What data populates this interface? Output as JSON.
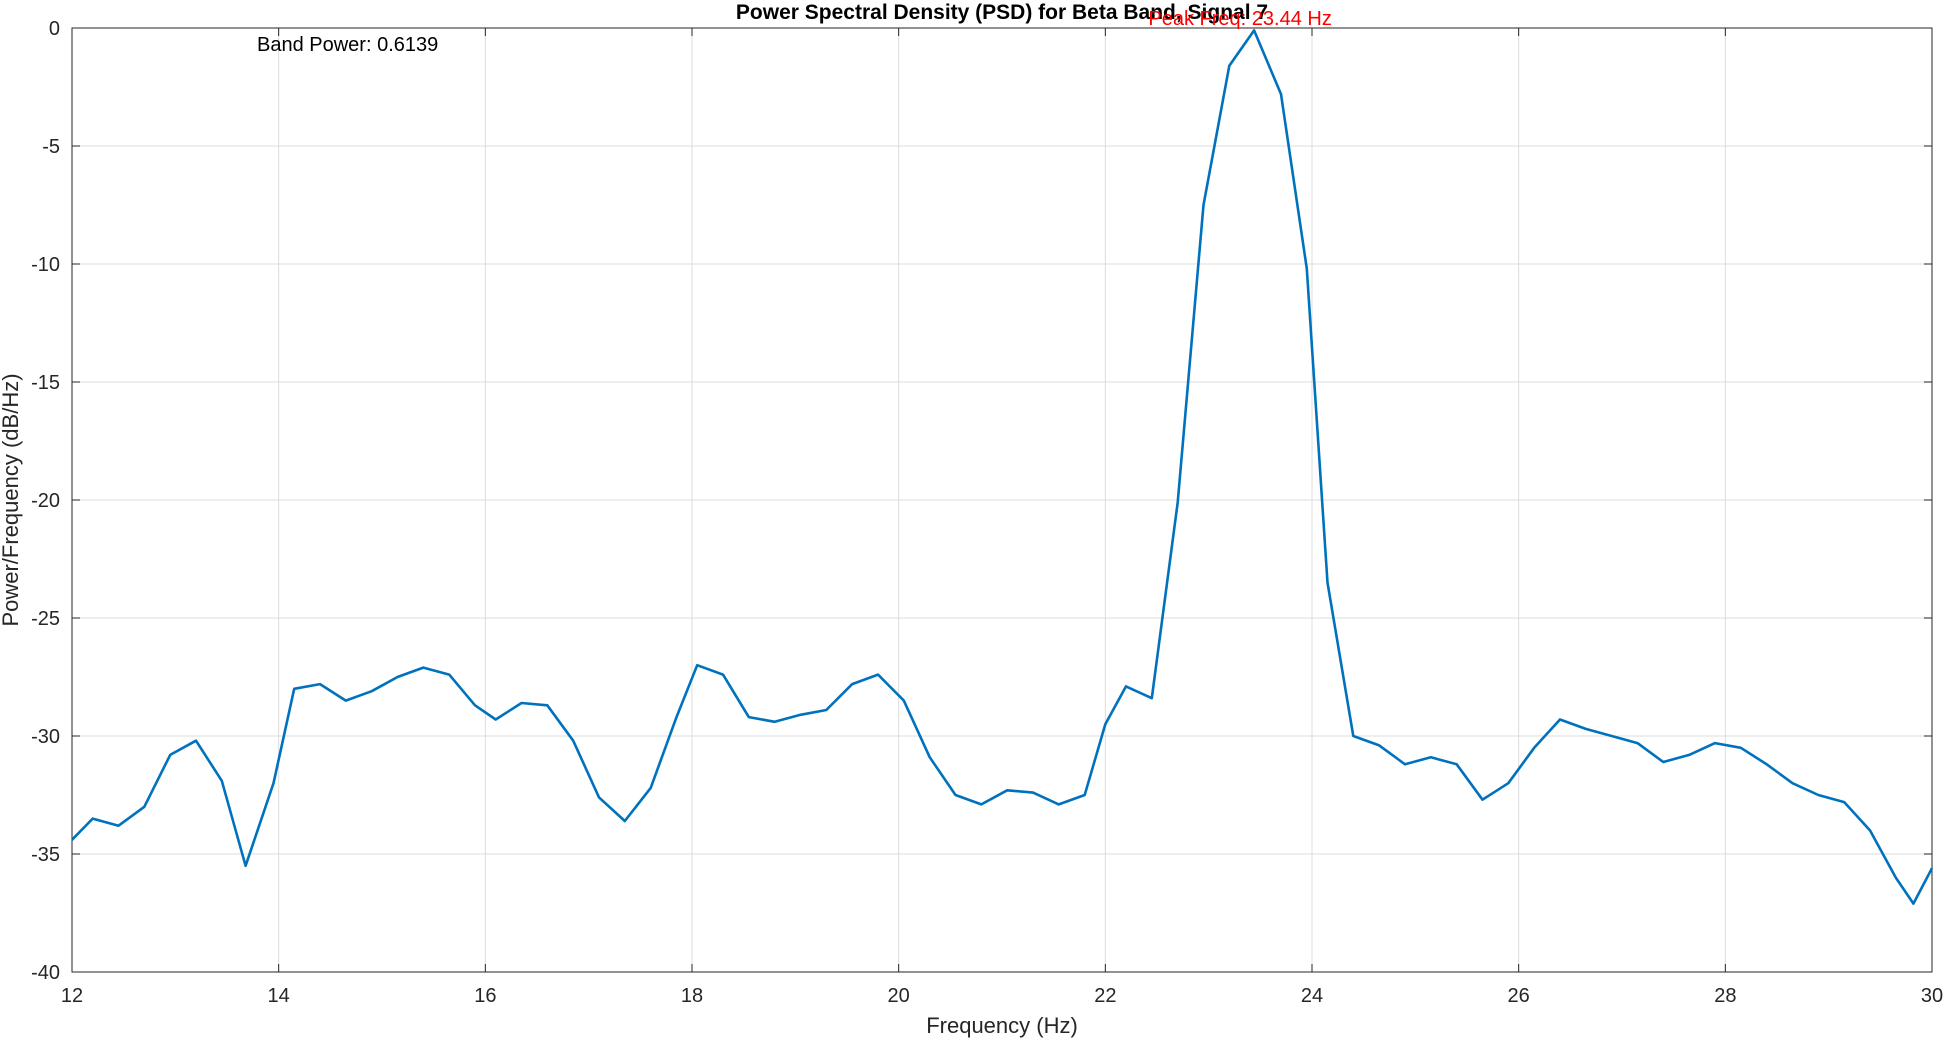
{
  "chart_data": {
    "type": "line",
    "title": "Power Spectral Density (PSD) for Beta Band, Signal 7",
    "xlabel": "Frequency (Hz)",
    "ylabel": "Power/Frequency (dB/Hz)",
    "xlim": [
      12,
      30
    ],
    "ylim": [
      -40,
      0
    ],
    "xticks": [
      12,
      14,
      16,
      18,
      20,
      22,
      24,
      26,
      28,
      30
    ],
    "yticks": [
      0,
      -5,
      -10,
      -15,
      -20,
      -25,
      -30,
      -35,
      -40
    ],
    "xtick_labels": [
      "12",
      "14",
      "16",
      "18",
      "20",
      "22",
      "24",
      "26",
      "28",
      "30"
    ],
    "ytick_labels": [
      "0",
      "-5",
      "-10",
      "-15",
      "-20",
      "-25",
      "-30",
      "-35",
      "-40"
    ],
    "grid": true,
    "line_color": "#0072BD",
    "series": [
      {
        "x": [
          12.0,
          12.2,
          12.45,
          12.7,
          12.95,
          13.2,
          13.45,
          13.68,
          13.95,
          14.15,
          14.4,
          14.65,
          14.9,
          15.15,
          15.4,
          15.65,
          15.9,
          16.1,
          16.35,
          16.6,
          16.85,
          17.1,
          17.35,
          17.6,
          17.85,
          18.05,
          18.3,
          18.55,
          18.8,
          19.05,
          19.3,
          19.55,
          19.8,
          20.05,
          20.3,
          20.55,
          20.8,
          21.05,
          21.3,
          21.55,
          21.8,
          22.0,
          22.2,
          22.45,
          22.7,
          22.95,
          23.2,
          23.44,
          23.7,
          23.95,
          24.15,
          24.4,
          24.65,
          24.9,
          25.15,
          25.4,
          25.65,
          25.9,
          26.15,
          26.4,
          26.65,
          26.9,
          27.15,
          27.4,
          27.65,
          27.9,
          28.15,
          28.4,
          28.65,
          28.9,
          29.15,
          29.4,
          29.65,
          29.82,
          30.0
        ],
        "y": [
          -34.4,
          -33.5,
          -33.8,
          -33.0,
          -30.8,
          -30.2,
          -31.9,
          -35.5,
          -32.0,
          -28.0,
          -27.8,
          -28.5,
          -28.1,
          -27.5,
          -27.1,
          -27.4,
          -28.7,
          -29.3,
          -28.6,
          -28.7,
          -30.2,
          -32.6,
          -33.6,
          -32.2,
          -29.2,
          -27.0,
          -27.4,
          -29.2,
          -29.4,
          -29.1,
          -28.9,
          -27.8,
          -27.4,
          -28.5,
          -30.9,
          -32.5,
          -32.9,
          -32.3,
          -32.4,
          -32.9,
          -32.5,
          -29.5,
          -27.9,
          -28.4,
          -20.1,
          -7.5,
          -1.6,
          -0.1,
          -2.8,
          -10.2,
          -23.5,
          -30.0,
          -30.4,
          -31.2,
          -30.9,
          -31.2,
          -32.7,
          -32.0,
          -30.5,
          -29.3,
          -29.7,
          -30.0,
          -30.3,
          -31.1,
          -30.8,
          -30.3,
          -30.5,
          -31.2,
          -32.0,
          -32.5,
          -32.8,
          -34.0,
          -36.0,
          -37.1,
          -35.6
        ]
      }
    ],
    "annotations": {
      "band_power": "Band Power: 0.6139",
      "band_power_color": "#000000",
      "peak": "Peak Freq: 23.44 Hz",
      "peak_color": "#ff0000",
      "peak_x": 23.44,
      "peak_y": -0.1
    }
  }
}
